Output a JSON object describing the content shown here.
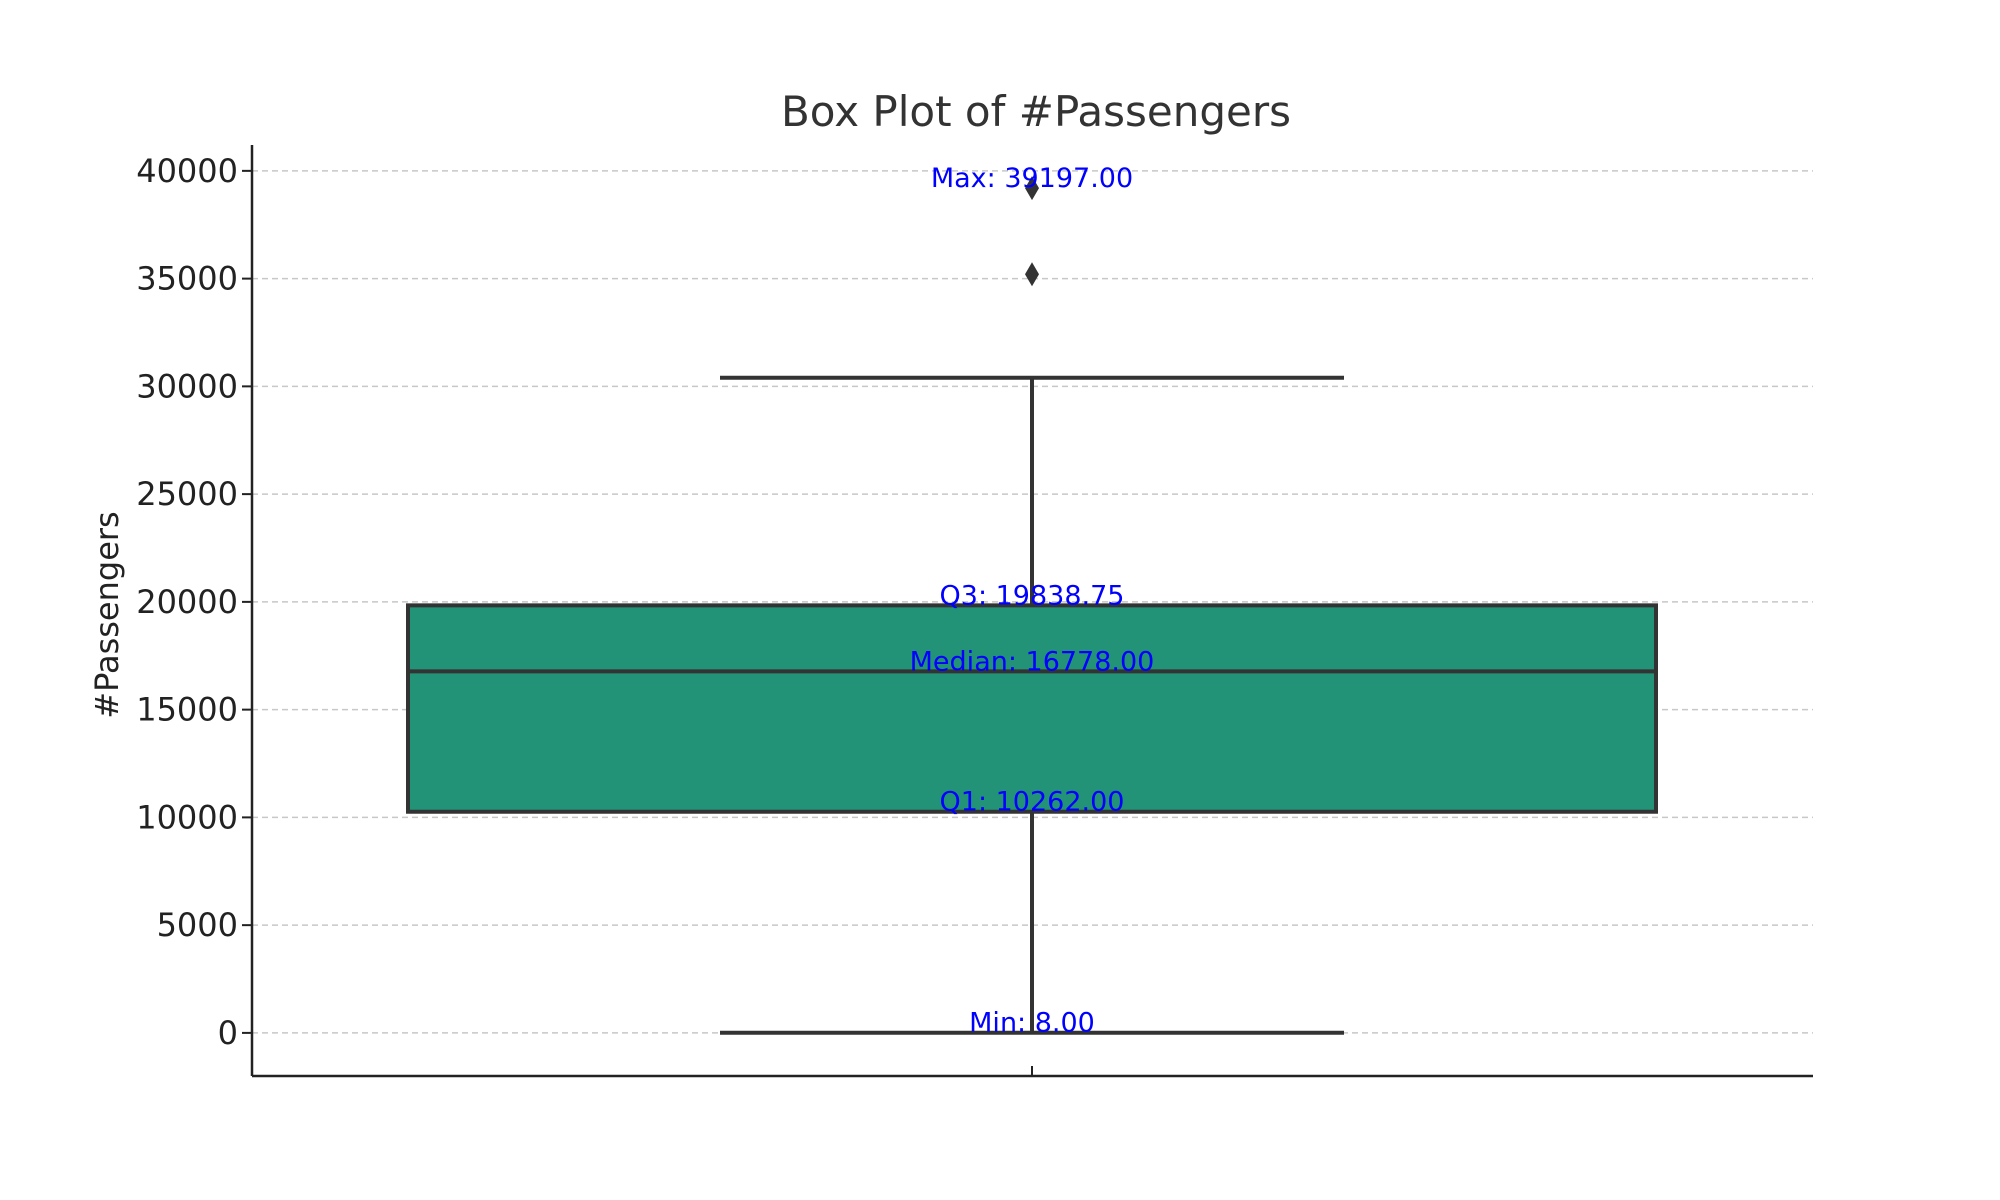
{
  "chart_data": {
    "type": "box",
    "title": "Box Plot of #Passengers",
    "xlabel": "",
    "ylabel": "#Passengers",
    "ylim": [
      -2000,
      41200
    ],
    "yticks": [
      0,
      5000,
      10000,
      15000,
      20000,
      25000,
      30000,
      35000,
      40000
    ],
    "grid": true,
    "box": {
      "min": 8.0,
      "q1": 10262.0,
      "median": 16778.0,
      "q3": 19838.75,
      "whisker_high": 30400,
      "whisker_low": 8.0,
      "outliers": [
        35200,
        39197.0
      ],
      "max": 39197.0
    },
    "annotations": [
      {
        "text": "Max: 39197.00",
        "y": 39197.0
      },
      {
        "text": "Q3: 19838.75",
        "y": 19838.75
      },
      {
        "text": "Median: 16778.00",
        "y": 16778.0
      },
      {
        "text": "Q1: 10262.00",
        "y": 10262.0
      },
      {
        "text": "Min: 8.00",
        "y": 8.0
      }
    ],
    "colors": {
      "box_fill": "#239378",
      "box_edge": "#333333",
      "annotation": "#0000ff",
      "grid": "#c8c8c8",
      "axis": "#222222"
    }
  }
}
